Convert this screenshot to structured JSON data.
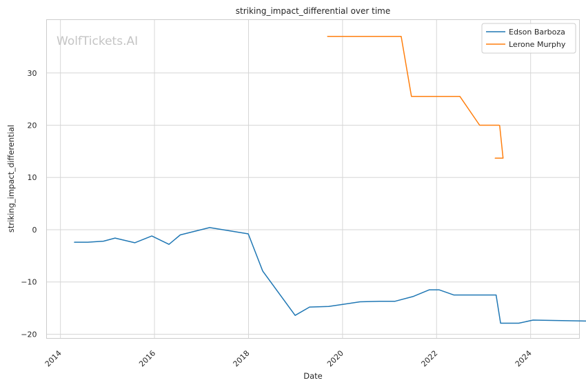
{
  "watermark": "WolfTickets.AI",
  "chart_data": {
    "type": "line",
    "title": "striking_impact_differential over time",
    "xlabel": "Date",
    "ylabel": "striking_impact_differential",
    "xlim": [
      "2013-09-15",
      "2025-01-15"
    ],
    "ylim": [
      -20.8,
      40.2
    ],
    "x_ticks": [
      "2014",
      "2016",
      "2018",
      "2020",
      "2022",
      "2024"
    ],
    "y_ticks": [
      -20,
      -10,
      0,
      10,
      20,
      30
    ],
    "y_tick_labels": [
      "−20",
      "−10",
      "0",
      "10",
      "20",
      "30"
    ],
    "grid": true,
    "legend_position": "top-right",
    "series": [
      {
        "name": "Edson Barboza",
        "color": "#1f77b4",
        "points": [
          [
            "2014-04-20",
            -2.4
          ],
          [
            "2014-08-01",
            -2.4
          ],
          [
            "2014-12-01",
            -2.2
          ],
          [
            "2015-03-01",
            -1.6
          ],
          [
            "2015-08-01",
            -2.5
          ],
          [
            "2015-12-11",
            -1.2
          ],
          [
            "2016-04-23",
            -2.8
          ],
          [
            "2016-07-20",
            -1.0
          ],
          [
            "2017-03-05",
            0.4
          ],
          [
            "2017-12-30",
            -0.8
          ],
          [
            "2018-04-21",
            -7.9
          ],
          [
            "2018-12-29",
            -16.4
          ],
          [
            "2019-04-20",
            -14.8
          ],
          [
            "2019-09-15",
            -14.7
          ],
          [
            "2020-05-16",
            -13.8
          ],
          [
            "2020-10-17",
            -13.7
          ],
          [
            "2021-02-13",
            -13.7
          ],
          [
            "2021-07-01",
            -12.8
          ],
          [
            "2021-11-06",
            -11.5
          ],
          [
            "2022-01-20",
            -11.5
          ],
          [
            "2022-05-14",
            -12.5
          ],
          [
            "2023-04-08",
            -12.5
          ],
          [
            "2023-05-13",
            -17.9
          ],
          [
            "2023-10-01",
            -17.9
          ],
          [
            "2024-01-20",
            -17.3
          ],
          [
            "2025-04-20",
            -17.5
          ]
        ]
      },
      {
        "name": "Lerone Murphy",
        "color": "#ff7f0e",
        "points": [
          [
            "2019-09-07",
            37.0
          ],
          [
            "2020-09-01",
            37.0
          ],
          [
            "2021-04-01",
            37.0
          ],
          [
            "2021-04-01",
            37.0
          ],
          [
            "2021-06-20",
            25.5
          ],
          [
            "2022-07-01",
            25.5
          ],
          [
            "2022-12-01",
            20.0
          ],
          [
            "2023-03-19",
            20.0
          ],
          [
            "2023-05-01",
            20.0
          ],
          [
            "2023-05-06",
            19.9
          ],
          [
            "2023-06-01",
            13.7
          ],
          [
            "2023-04-01",
            13.7
          ]
        ]
      }
    ]
  }
}
